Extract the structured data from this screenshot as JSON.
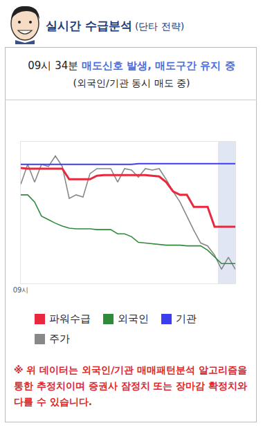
{
  "header": {
    "title": "실시간 수급분석",
    "subtitle": "(단타 전략)"
  },
  "signal": {
    "time": "09시 34분",
    "message": "매도신호 발생, 매도구간 유지 중",
    "detail": "(외국인/기관 동시 매도 중)"
  },
  "chart_data": {
    "type": "line",
    "categories": [
      "09시",
      null,
      null,
      null,
      null,
      null,
      null,
      null,
      null,
      null,
      null,
      null,
      null,
      null,
      null,
      null,
      null,
      null,
      null,
      null,
      null,
      null,
      null,
      null,
      null,
      null,
      null,
      null,
      null,
      null,
      null,
      null
    ],
    "ylim": [
      0,
      100
    ],
    "tick_labels": "x",
    "grid": false,
    "sell_zone": [
      28.5,
      31
    ],
    "series": [
      {
        "name": "주가",
        "color": "#888888",
        "values": [
          70,
          84,
          71.5,
          84,
          82.5,
          90,
          82.5,
          60,
          62.5,
          61,
          77.5,
          81,
          81,
          81,
          71.5,
          81,
          80,
          75,
          81,
          80,
          81,
          73.5,
          65,
          57.5,
          47.5,
          37.5,
          28.5,
          26.5,
          20,
          10,
          18.5,
          10
        ]
      },
      {
        "name": "기관",
        "color": "#3d3df0",
        "values": [
          84,
          84,
          84,
          84,
          84,
          84,
          84,
          84,
          84,
          84,
          84,
          84,
          84,
          84,
          84,
          84,
          84,
          84.5,
          84.5,
          84.5,
          84.5,
          84.5,
          84.5,
          84.5,
          84.5,
          84.5,
          84.5,
          84.5,
          84.5,
          84.5,
          84.5,
          84.5
        ]
      },
      {
        "name": "외국인",
        "color": "#2e8b3a",
        "values": [
          62.5,
          62.5,
          57.5,
          47.5,
          45,
          42.5,
          40.5,
          39,
          38.5,
          38.5,
          38.5,
          38,
          38,
          38,
          35,
          35,
          33,
          29,
          28.5,
          28,
          27.5,
          27,
          27,
          27,
          26.5,
          26.5,
          26.5,
          23.5,
          19,
          14,
          14,
          14
        ]
      },
      {
        "name": "파워수급",
        "color": "#e8283c",
        "values": [
          81.5,
          81,
          81,
          81,
          81,
          81,
          81,
          73.5,
          73.5,
          73.5,
          73.5,
          76,
          76.5,
          76.5,
          76.5,
          76.5,
          76.5,
          76.5,
          76.5,
          76,
          75.5,
          71.5,
          65,
          62.5,
          62.5,
          54,
          54,
          54,
          40,
          40,
          40,
          40
        ]
      }
    ]
  },
  "disclaimer": "※ 위 데이터는 외국인/기관 매매패턴분석 알고리즘을 통한 추정치이며 증권사 잠정치 또는 장마감 확정치와 다를 수 있습니다."
}
